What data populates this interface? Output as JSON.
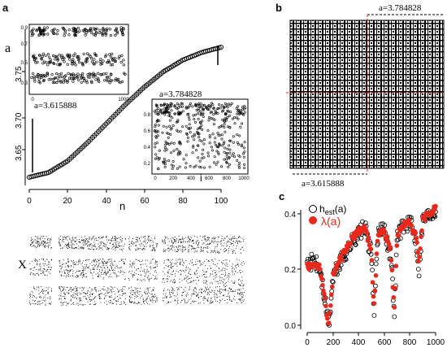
{
  "panels": {
    "a": {
      "letter": "a",
      "ylabel": "a",
      "xlabel": "n",
      "xticks": [
        "0",
        "20",
        "40",
        "60",
        "80",
        "100"
      ],
      "yticks": [
        "3.65",
        "3.70",
        "3.75"
      ],
      "annotation_low": "a=3.615888",
      "annotation_high": "a=3.784828",
      "inset_left": {
        "xticks": [
          "0",
          "1000"
        ],
        "yticks": [
          "0.3",
          "0.5",
          "0.7",
          "0.9"
        ]
      },
      "inset_right": {
        "xlabel": "i",
        "xticks": [
          "0",
          "200",
          "400",
          "600",
          "800",
          "1000"
        ],
        "yticks": [
          "0.2",
          "0.4",
          "0.6",
          "0.8"
        ]
      }
    },
    "b": {
      "letter": "b",
      "annotation_high": "a=3.784828",
      "annotation_low": "a=3.615888"
    },
    "bifurcation": {
      "ylabel": "X"
    },
    "c": {
      "letter": "c",
      "legend_hest_main": "h",
      "legend_hest_sub": "est",
      "legend_hest_arg": "(a)",
      "legend_lambda": "λ(a)",
      "xticks": [
        "0",
        "200",
        "400",
        "600",
        "800",
        "1000"
      ],
      "yticks": [
        "0.0",
        "0.2",
        "0.4"
      ],
      "colors": {
        "hest": "#000000",
        "lambda": "#e8291c"
      }
    }
  },
  "chart_data": [
    {
      "type": "scatter",
      "panel": "a",
      "x_name": "n",
      "y_name": "a",
      "x_range": [
        0,
        100
      ],
      "y_range": [
        3.615888,
        3.784828
      ],
      "ylim": [
        3.615888,
        3.784828
      ],
      "x": [
        0,
        10,
        20,
        30,
        40,
        50,
        60,
        70,
        80,
        90,
        100
      ],
      "y": [
        3.6159,
        3.622,
        3.637,
        3.66,
        3.685,
        3.71,
        3.733,
        3.753,
        3.768,
        3.778,
        3.7848
      ],
      "marker": "open-circle"
    },
    {
      "type": "scatter",
      "panel": "c",
      "xlim": [
        0,
        1000
      ],
      "ylim": [
        0,
        0.45
      ],
      "series": [
        {
          "name": "h_est(a)",
          "marker": "open-circle",
          "x": [
            0,
            50,
            100,
            150,
            170,
            200,
            250,
            300,
            350,
            400,
            450,
            500,
            520,
            550,
            600,
            650,
            680,
            700,
            750,
            800,
            850,
            870,
            900,
            950,
            1000
          ],
          "y": [
            0.22,
            0.23,
            0.2,
            0.05,
            0.0,
            0.17,
            0.22,
            0.26,
            0.3,
            0.33,
            0.35,
            0.25,
            0.05,
            0.32,
            0.35,
            0.25,
            0.05,
            0.32,
            0.36,
            0.37,
            0.3,
            0.2,
            0.38,
            0.4,
            0.42
          ]
        },
        {
          "name": "λ(a)",
          "marker": "filled-circle",
          "x": [
            0,
            50,
            100,
            150,
            170,
            200,
            250,
            300,
            350,
            400,
            450,
            500,
            520,
            550,
            600,
            650,
            680,
            700,
            750,
            800,
            850,
            870,
            900,
            950,
            1000
          ],
          "y": [
            0.21,
            0.22,
            0.21,
            0.05,
            0.0,
            0.18,
            0.23,
            0.27,
            0.31,
            0.34,
            0.35,
            0.27,
            0.05,
            0.33,
            0.34,
            0.27,
            0.05,
            0.32,
            0.36,
            0.37,
            0.31,
            0.22,
            0.38,
            0.4,
            0.42
          ]
        }
      ]
    }
  ]
}
